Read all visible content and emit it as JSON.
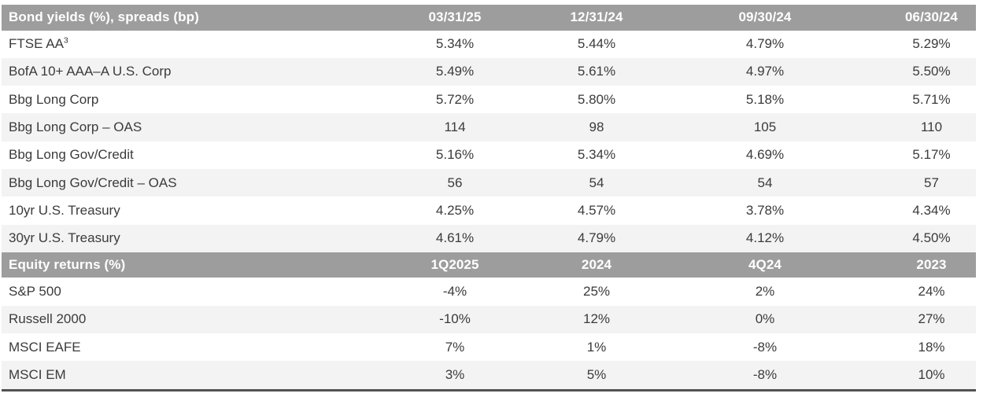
{
  "style": {
    "header_bg": "#9d9d9d",
    "header_text": "#ffffff",
    "alt_row_bg": "#f3f3f3",
    "row_text": "#3b3b3b",
    "bottom_border": "#525252"
  },
  "chart_data": [
    {
      "type": "table",
      "title": "Bond yields (%), spreads (bp)",
      "columns": [
        "03/31/25",
        "12/31/24",
        "09/30/24",
        "06/30/24"
      ],
      "rows": [
        {
          "label": "FTSE AA",
          "label_sup": "3",
          "values": [
            "5.34%",
            "5.44%",
            "4.79%",
            "5.29%"
          ]
        },
        {
          "label": "BofA 10+ AAA–A U.S. Corp",
          "values": [
            "5.49%",
            "5.61%",
            "4.97%",
            "5.50%"
          ]
        },
        {
          "label": "Bbg Long Corp",
          "values": [
            "5.72%",
            "5.80%",
            "5.18%",
            "5.71%"
          ]
        },
        {
          "label": "Bbg Long Corp – OAS",
          "values": [
            "114",
            "98",
            "105",
            "110"
          ]
        },
        {
          "label": "Bbg Long Gov/Credit",
          "values": [
            "5.16%",
            "5.34%",
            "4.69%",
            "5.17%"
          ]
        },
        {
          "label": "Bbg Long Gov/Credit – OAS",
          "values": [
            "56",
            "54",
            "54",
            "57"
          ]
        },
        {
          "label": "10yr U.S. Treasury",
          "values": [
            "4.25%",
            "4.57%",
            "3.78%",
            "4.34%"
          ]
        },
        {
          "label": "30yr U.S. Treasury",
          "values": [
            "4.61%",
            "4.79%",
            "4.12%",
            "4.50%"
          ]
        }
      ]
    },
    {
      "type": "table",
      "title": "Equity returns (%)",
      "columns": [
        "1Q2025",
        "2024",
        "4Q24",
        "2023"
      ],
      "rows": [
        {
          "label": "S&P 500",
          "values": [
            "-4%",
            "25%",
            "2%",
            "24%"
          ]
        },
        {
          "label": "Russell 2000",
          "values": [
            "-10%",
            "12%",
            "0%",
            "27%"
          ]
        },
        {
          "label": "MSCI EAFE",
          "values": [
            "7%",
            "1%",
            "-8%",
            "18%"
          ]
        },
        {
          "label": "MSCI EM",
          "values": [
            "3%",
            "5%",
            "-8%",
            "10%"
          ]
        }
      ]
    }
  ]
}
